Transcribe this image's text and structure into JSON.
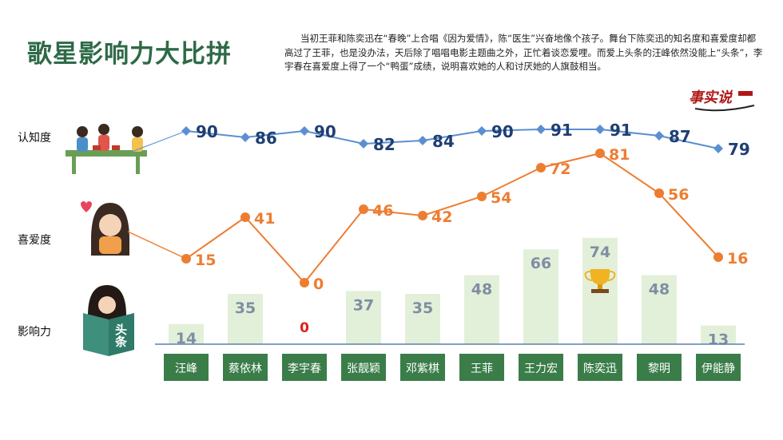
{
  "title": "歌星影响力大比拼",
  "description": "当初王菲和陈奕迅在“春晚”上合唱《因为爱情》，陈“医生”兴奋地像个孩子。舞台下陈奕迅的知名度和喜爱度却都高过了王菲，也是没办法，天后除了唱唱电影主题曲之外，正忙着谈恋爱哩。而爱上头条的汪峰依然没能上“头条”，李宇春在喜爱度上得了一个“鸭蛋”成绩，说明喜欢她的人和讨厌她的人旗鼓相当。",
  "logo_text": "事实说",
  "row_labels": {
    "awareness": "认知度",
    "likeability": "喜爱度",
    "influence": "影响力"
  },
  "headline_icon_text": "头条",
  "colors": {
    "title": "#2e6a47",
    "awareness_line": "#5b8fd1",
    "awareness_text": "#1f3f73",
    "likeability_line": "#ed7d31",
    "bar_fill": "#e3f0d9",
    "bar_text": "#7f8ea3",
    "zero_text": "#e0201f",
    "name_box": "#3a7d49",
    "axis": "#5a7fb5"
  },
  "chart_data": {
    "type": "line+bar",
    "categories": [
      "汪峰",
      "蔡依林",
      "李宇春",
      "张靓颖",
      "邓紫棋",
      "王菲",
      "王力宏",
      "陈奕迅",
      "黎明",
      "伊能静"
    ],
    "series": [
      {
        "name": "认知度",
        "type": "line",
        "values": [
          90,
          86,
          90,
          82,
          84,
          90,
          91,
          91,
          87,
          79
        ]
      },
      {
        "name": "喜爱度",
        "type": "line",
        "values": [
          15,
          41,
          0,
          46,
          42,
          54,
          72,
          81,
          56,
          16
        ]
      },
      {
        "name": "影响力",
        "type": "bar",
        "values": [
          14,
          35,
          0,
          37,
          35,
          48,
          66,
          74,
          48,
          13
        ]
      }
    ],
    "highlight": {
      "category": "陈奕迅",
      "icon": "trophy-icon"
    }
  }
}
